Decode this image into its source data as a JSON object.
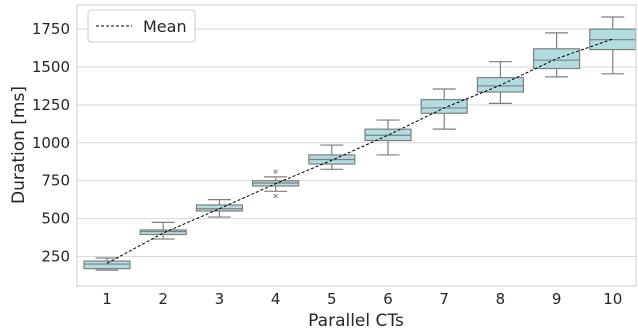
{
  "chart_data": {
    "type": "box",
    "xlabel": "Parallel CTs",
    "ylabel": "Duration [ms]",
    "categories": [
      "1",
      "2",
      "3",
      "4",
      "5",
      "6",
      "7",
      "8",
      "9",
      "10"
    ],
    "yticks": [
      "250",
      "500",
      "750",
      "1000",
      "1250",
      "1500",
      "1750"
    ],
    "ytick_values": [
      250,
      500,
      750,
      1000,
      1250,
      1500,
      1750
    ],
    "ylim": [
      60,
      1930
    ],
    "grid": "horizontal",
    "legend": {
      "placement": "top-left",
      "entries": [
        {
          "label": "Mean",
          "style": "dashed"
        }
      ]
    },
    "boxes": [
      {
        "x": "1",
        "whislo": 160,
        "q1": 170,
        "med": 200,
        "q3": 220,
        "whishi": 240,
        "fliers": []
      },
      {
        "x": "2",
        "whislo": 365,
        "q1": 395,
        "med": 415,
        "q3": 425,
        "whishi": 475,
        "fliers": []
      },
      {
        "x": "3",
        "whislo": 510,
        "q1": 550,
        "med": 565,
        "q3": 590,
        "whishi": 625,
        "fliers": []
      },
      {
        "x": "4",
        "whislo": 680,
        "q1": 715,
        "med": 735,
        "q3": 750,
        "whishi": 775,
        "fliers": [
          650,
          810
        ]
      },
      {
        "x": "5",
        "whislo": 825,
        "q1": 860,
        "med": 890,
        "q3": 920,
        "whishi": 985,
        "fliers": []
      },
      {
        "x": "6",
        "whislo": 920,
        "q1": 1015,
        "med": 1050,
        "q3": 1090,
        "whishi": 1150,
        "fliers": []
      },
      {
        "x": "7",
        "whislo": 1090,
        "q1": 1195,
        "med": 1230,
        "q3": 1285,
        "whishi": 1355,
        "fliers": []
      },
      {
        "x": "8",
        "whislo": 1260,
        "q1": 1335,
        "med": 1375,
        "q3": 1430,
        "whishi": 1535,
        "fliers": []
      },
      {
        "x": "9",
        "whislo": 1435,
        "q1": 1490,
        "med": 1545,
        "q3": 1620,
        "whishi": 1725,
        "fliers": []
      },
      {
        "x": "10",
        "whislo": 1455,
        "q1": 1615,
        "med": 1680,
        "q3": 1750,
        "whishi": 1830,
        "fliers": []
      }
    ],
    "mean_line": [
      205,
      405,
      565,
      730,
      885,
      1050,
      1230,
      1380,
      1555,
      1685
    ],
    "colors": {
      "box_fill": "#b2dde0",
      "box_edge": "#7f7f7f",
      "grid": "#d9d9d9",
      "mean_line": "#000000"
    }
  }
}
